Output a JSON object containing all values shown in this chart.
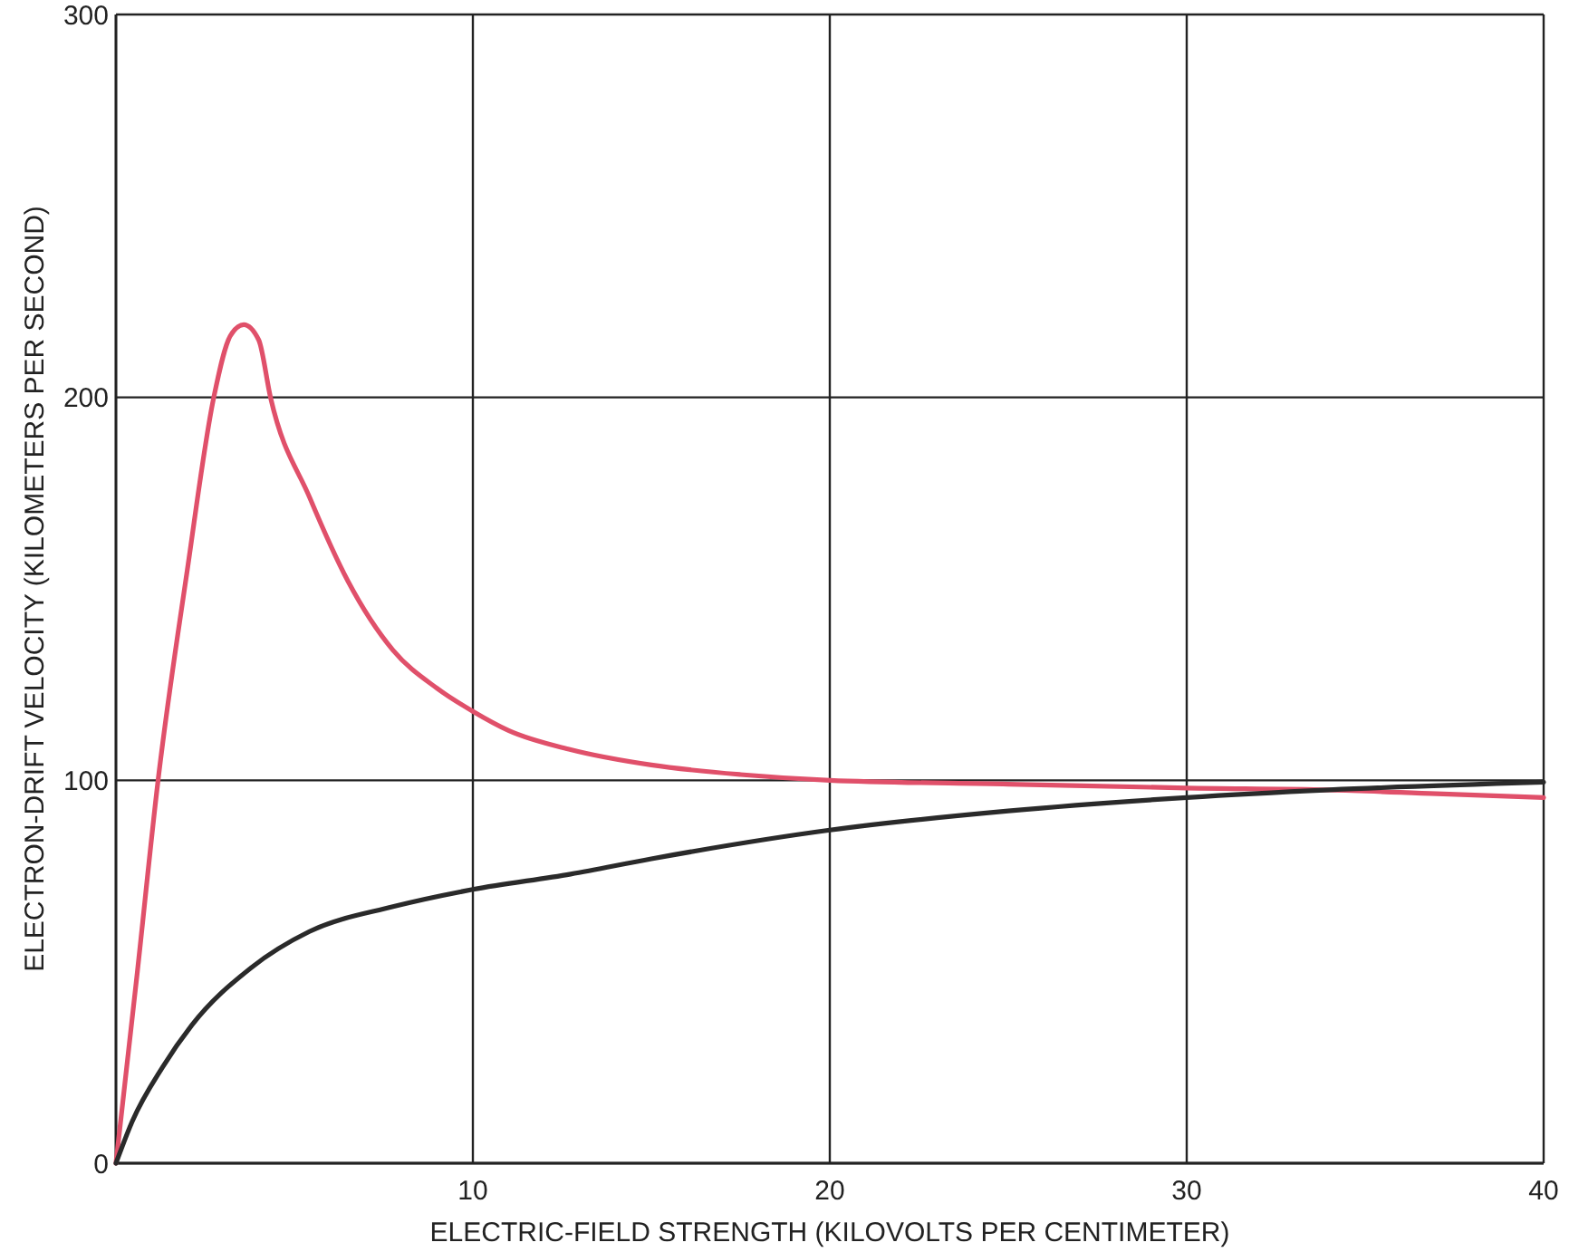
{
  "chart_data": {
    "type": "line",
    "xlabel": "ELECTRIC-FIELD STRENGTH (KILOVOLTS PER CENTIMETER)",
    "ylabel": "ELECTRON-DRIFT VELOCITY (KILOMETERS PER SECOND)",
    "xlim": [
      0,
      40
    ],
    "ylim": [
      0,
      300
    ],
    "xticks": [
      {
        "value": 0,
        "label": null
      },
      10,
      20,
      30,
      40
    ],
    "yticks": [
      0,
      100,
      200,
      300
    ],
    "grid": true,
    "series": [
      {
        "color": "#e0506a",
        "x": [
          0,
          0.6,
          1.18,
          2,
          2.74,
          3.2,
          3.58,
          4.0,
          4.33,
          5.42,
          6.5,
          7.76,
          9,
          10,
          11,
          12.74,
          15,
          17.5,
          20,
          25,
          30,
          34,
          37,
          40
        ],
        "values": [
          0,
          50,
          100,
          155,
          200,
          216,
          219,
          215,
          200,
          174,
          152,
          134,
          124,
          118,
          113,
          108,
          104,
          101.5,
          100,
          99,
          98,
          97.5,
          96.5,
          95.5
        ]
      },
      {
        "color": "#2a2a2a",
        "x": [
          0,
          0.46,
          1.3,
          2.12,
          3.78,
          5.42,
          7.76,
          10,
          12.74,
          15,
          20,
          25,
          30,
          34,
          40
        ],
        "values": [
          0,
          11,
          25,
          36,
          51,
          60.5,
          67,
          71.5,
          75.5,
          79.5,
          87,
          92,
          95.5,
          97.5,
          99.5
        ]
      }
    ]
  }
}
